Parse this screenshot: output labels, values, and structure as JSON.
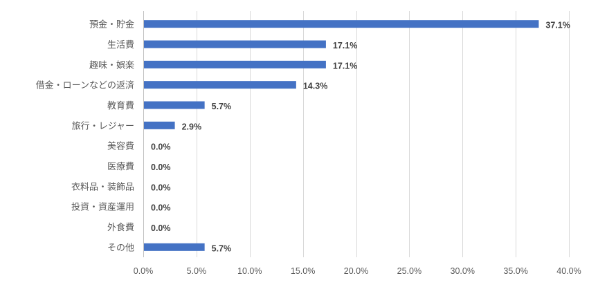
{
  "chart_data": {
    "type": "bar",
    "orientation": "horizontal",
    "title": "",
    "xlabel": "",
    "ylabel": "",
    "categories": [
      "預金・貯金",
      "生活費",
      "趣味・娯楽",
      "借金・ローンなどの返済",
      "教育費",
      "旅行・レジャー",
      "美容費",
      "医療費",
      "衣料品・装飾品",
      "投資・資産運用",
      "外食費",
      "その他"
    ],
    "values": [
      37.1,
      17.1,
      17.1,
      14.3,
      5.7,
      2.9,
      0.0,
      0.0,
      0.0,
      0.0,
      0.0,
      5.7
    ],
    "value_labels": [
      "37.1%",
      "17.1%",
      "17.1%",
      "14.3%",
      "5.7%",
      "2.9%",
      "0.0%",
      "0.0%",
      "0.0%",
      "0.0%",
      "0.0%",
      "5.7%"
    ],
    "xlim": [
      0,
      40
    ],
    "ticks": [
      0,
      5,
      10,
      15,
      20,
      25,
      30,
      35,
      40
    ],
    "tick_labels": [
      "0.0%",
      "5.0%",
      "10.0%",
      "15.0%",
      "20.0%",
      "25.0%",
      "30.0%",
      "35.0%",
      "40.0%"
    ],
    "bar_color": "#4472C4",
    "grid": "vertical",
    "legend": "none"
  }
}
